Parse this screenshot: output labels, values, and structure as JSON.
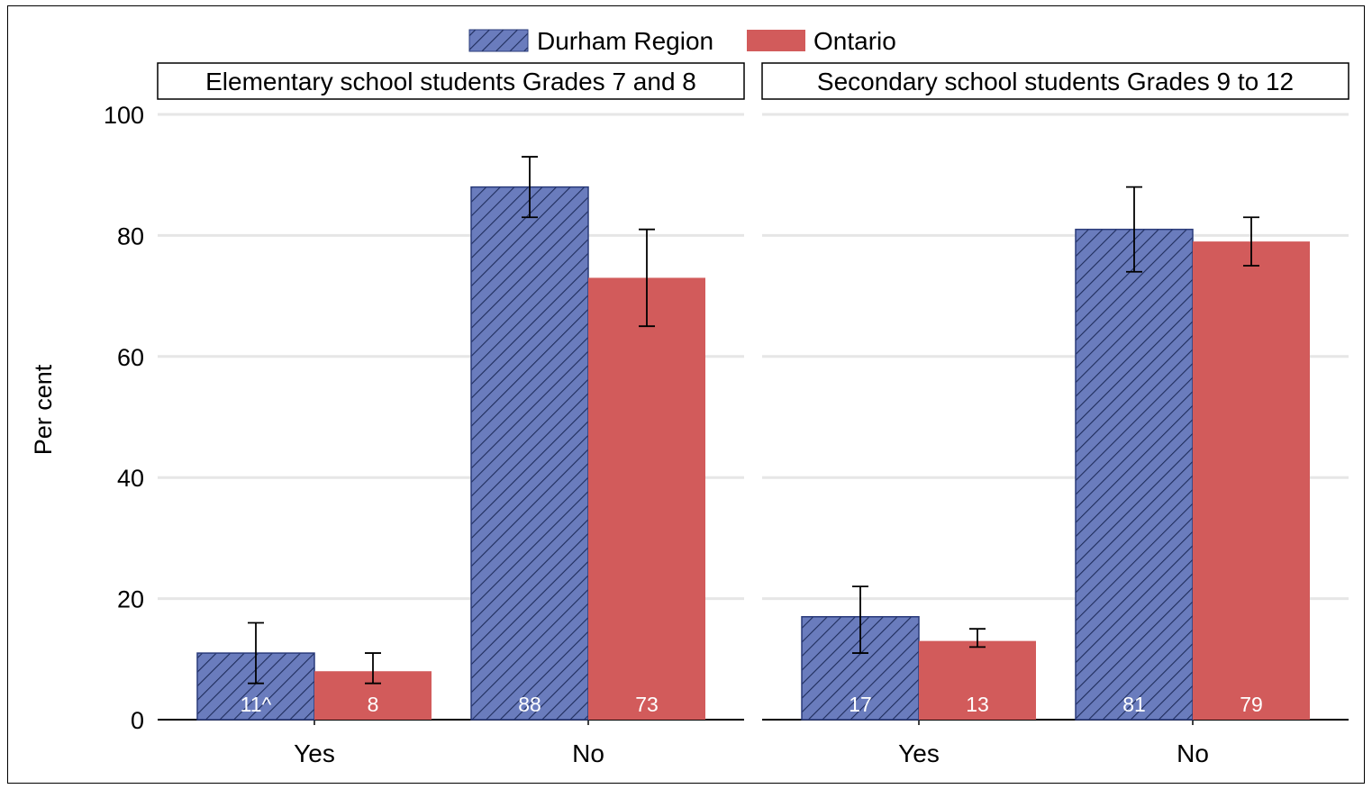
{
  "chart_data": {
    "type": "bar",
    "ylabel": "Per cent",
    "ylim": [
      0,
      100
    ],
    "yticks": [
      0,
      20,
      40,
      60,
      80,
      100
    ],
    "grid": true,
    "legend_position": "top-center",
    "legend": [
      {
        "name": "Durham Region",
        "color": "#6a7cbd",
        "pattern": "diagonal-hatch"
      },
      {
        "name": "Ontario",
        "color": "#d25b5b",
        "pattern": "solid"
      }
    ],
    "categories": [
      "Yes",
      "No"
    ],
    "panels": [
      {
        "title": "Elementary school students Grades 7 and 8",
        "series": [
          {
            "name": "Durham Region",
            "values": [
              11,
              88
            ],
            "labels": [
              "11^",
              "88"
            ],
            "ci_low": [
              6,
              83
            ],
            "ci_high": [
              16,
              93
            ]
          },
          {
            "name": "Ontario",
            "values": [
              8,
              73
            ],
            "labels": [
              "8",
              "73"
            ],
            "ci_low": [
              6,
              65
            ],
            "ci_high": [
              11,
              81
            ]
          }
        ]
      },
      {
        "title": "Secondary school students Grades 9 to 12",
        "series": [
          {
            "name": "Durham Region",
            "values": [
              17,
              81
            ],
            "labels": [
              "17",
              "81"
            ],
            "ci_low": [
              11,
              74
            ],
            "ci_high": [
              22,
              88
            ]
          },
          {
            "name": "Ontario",
            "values": [
              13,
              79
            ],
            "labels": [
              "13",
              "79"
            ],
            "ci_low": [
              12,
              75
            ],
            "ci_high": [
              15,
              83
            ]
          }
        ]
      }
    ]
  }
}
